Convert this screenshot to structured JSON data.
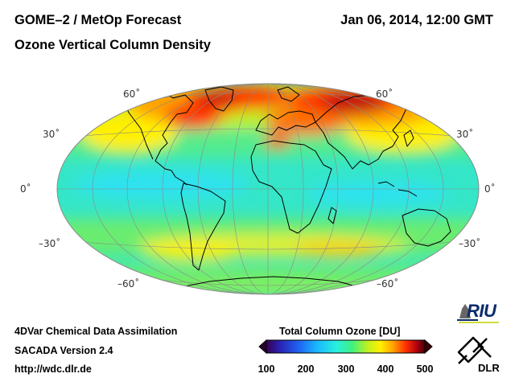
{
  "header": {
    "title_line1": "GOME–2 / MetOp Forecast",
    "title_line2": "Ozone Vertical Column Density",
    "datetime": "Jan 06, 2014, 12:00 GMT"
  },
  "map": {
    "projection": "Hammer-Aitoff world map",
    "lat_labels": {
      "n60": "60˚",
      "n30": "30˚",
      "zero": "0˚",
      "s30": "–30˚",
      "s60": "–60˚"
    }
  },
  "colorbar": {
    "title": "Total Column Ozone [DU]",
    "ticks": [
      "100",
      "200",
      "300",
      "400",
      "500"
    ],
    "range": [
      100,
      500
    ],
    "colors": [
      "#2a0030",
      "#3a10a0",
      "#1d3be0",
      "#1aa8ff",
      "#22f0e8",
      "#3af07a",
      "#c8f020",
      "#fff000",
      "#ffa000",
      "#ff3000",
      "#b00010",
      "#3a0008"
    ]
  },
  "footer": {
    "line1": "4DVar Chemical Data Assimilation",
    "line2": "SACADA Version 2.4",
    "line3": "http://wdc.dlr.de"
  },
  "logos": {
    "riu": "RIU",
    "dlr": "DLR"
  }
}
